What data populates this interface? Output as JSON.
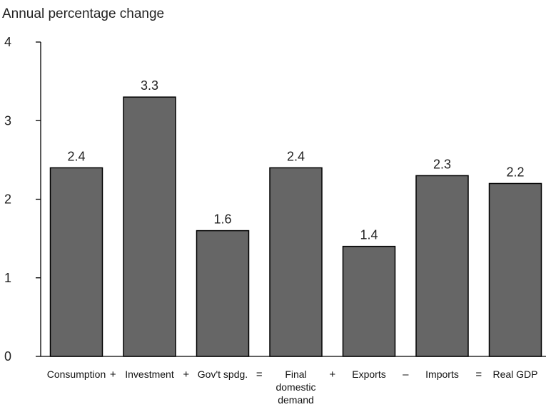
{
  "chart_data": {
    "type": "bar",
    "title": "",
    "ylabel": "Annual percentage change",
    "xlabel": "",
    "ylim": [
      0,
      4
    ],
    "yticks": [
      0,
      1,
      2,
      3,
      4
    ],
    "grid": false,
    "bar_color": "#666666",
    "bar_edge_color": "#000000",
    "categories": [
      [
        "Consumption"
      ],
      [
        "Investment"
      ],
      [
        "Gov't spdg."
      ],
      [
        "Final",
        "domestic",
        "demand"
      ],
      [
        "Exports"
      ],
      [
        "Imports"
      ],
      [
        "Real GDP"
      ]
    ],
    "values": [
      2.4,
      3.3,
      1.6,
      2.4,
      1.4,
      2.3,
      2.2
    ],
    "value_labels": [
      "2.4",
      "3.3",
      "1.6",
      "2.4",
      "1.4",
      "2.3",
      "2.2"
    ],
    "operators": [
      "+",
      "+",
      "=",
      "+",
      "–",
      "="
    ]
  }
}
